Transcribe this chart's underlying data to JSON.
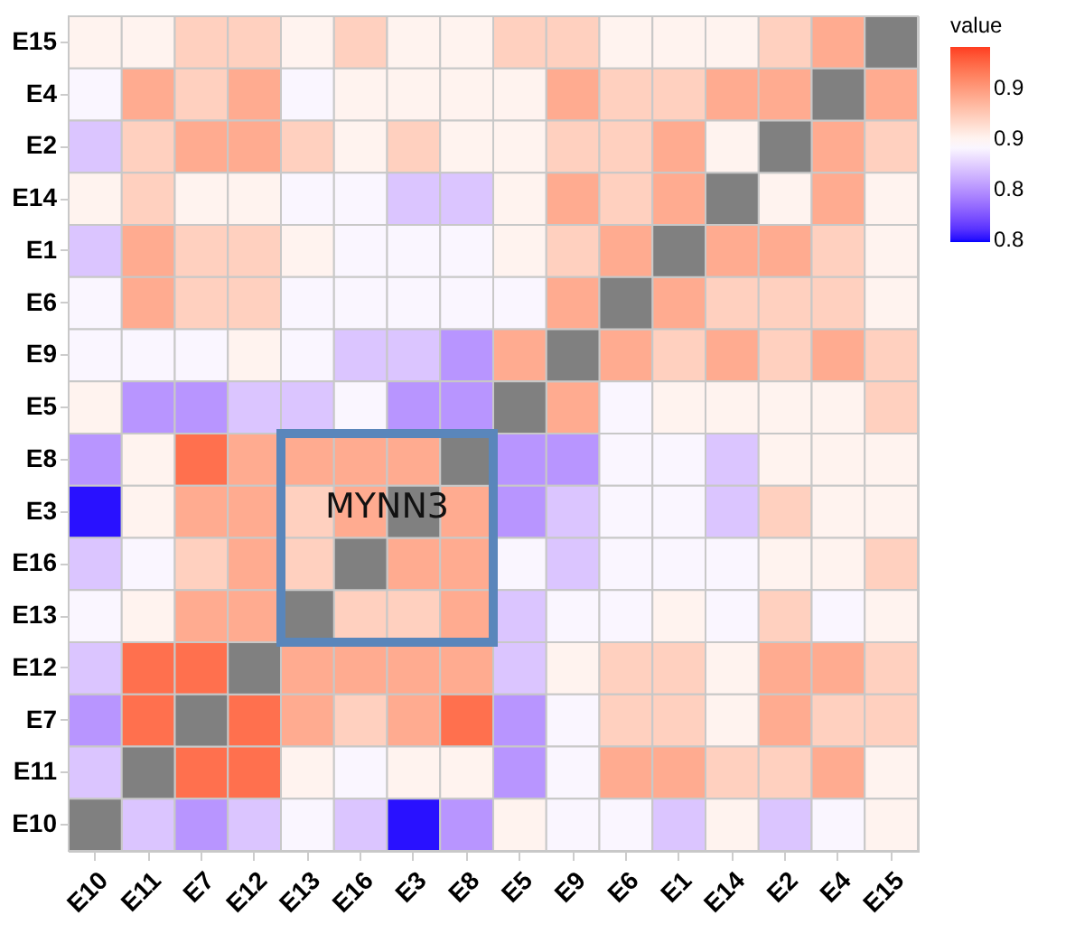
{
  "chart_data": {
    "type": "heatmap",
    "legend_title": "value",
    "annotations": [
      "MYNN3"
    ],
    "categories": [
      "E10",
      "E11",
      "E7",
      "E12",
      "E13",
      "E16",
      "E3",
      "E8",
      "E5",
      "E9",
      "E6",
      "E1",
      "E14",
      "E2",
      "E4",
      "E15"
    ],
    "y_categories": [
      "E15",
      "E4",
      "E2",
      "E14",
      "E1",
      "E6",
      "E9",
      "E5",
      "E8",
      "E3",
      "E16",
      "E13",
      "E12",
      "E7",
      "E11",
      "E10"
    ],
    "clim": [
      0.797,
      0.99
    ],
    "cticks": [
      {
        "value": 0.8,
        "label": "0.8"
      },
      {
        "value": 0.85,
        "label": "0.8"
      },
      {
        "value": 0.9,
        "label": "0.9"
      },
      {
        "value": 0.95,
        "label": "0.9"
      }
    ],
    "cells": [
      [
        0.9,
        0.9,
        0.92,
        0.92,
        0.9,
        0.92,
        0.9,
        0.9,
        0.92,
        0.92,
        0.9,
        0.9,
        0.9,
        0.92,
        0.94,
        null
      ],
      [
        0.89,
        0.94,
        0.92,
        0.94,
        0.89,
        0.9,
        0.9,
        0.9,
        0.9,
        0.94,
        0.92,
        0.92,
        0.94,
        0.94,
        null,
        0.94
      ],
      [
        0.87,
        0.92,
        0.94,
        0.94,
        0.92,
        0.9,
        0.92,
        0.9,
        0.9,
        0.92,
        0.92,
        0.94,
        0.9,
        null,
        0.94,
        0.92
      ],
      [
        0.9,
        0.92,
        0.9,
        0.9,
        0.89,
        0.89,
        0.87,
        0.87,
        0.9,
        0.94,
        0.92,
        0.94,
        null,
        0.9,
        0.94,
        0.9
      ],
      [
        0.87,
        0.94,
        0.92,
        0.92,
        0.9,
        0.89,
        0.89,
        0.89,
        0.9,
        0.92,
        0.94,
        null,
        0.94,
        0.94,
        0.92,
        0.9
      ],
      [
        0.89,
        0.94,
        0.92,
        0.92,
        0.89,
        0.89,
        0.89,
        0.89,
        0.89,
        0.94,
        null,
        0.94,
        0.92,
        0.92,
        0.92,
        0.9
      ],
      [
        0.89,
        0.89,
        0.89,
        0.9,
        0.89,
        0.87,
        0.87,
        0.85,
        0.94,
        null,
        0.94,
        0.92,
        0.94,
        0.92,
        0.94,
        0.92
      ],
      [
        0.9,
        0.85,
        0.85,
        0.87,
        0.87,
        0.89,
        0.85,
        0.85,
        null,
        0.94,
        0.89,
        0.9,
        0.9,
        0.9,
        0.9,
        0.92
      ],
      [
        0.85,
        0.9,
        0.97,
        0.94,
        0.94,
        0.94,
        0.94,
        null,
        0.85,
        0.85,
        0.89,
        0.89,
        0.87,
        0.9,
        0.9,
        0.9
      ],
      [
        0.8,
        0.9,
        0.94,
        0.94,
        0.92,
        0.94,
        null,
        0.94,
        0.85,
        0.87,
        0.89,
        0.89,
        0.87,
        0.92,
        0.9,
        0.9
      ],
      [
        0.87,
        0.89,
        0.92,
        0.94,
        0.92,
        null,
        0.94,
        0.94,
        0.89,
        0.87,
        0.89,
        0.89,
        0.89,
        0.9,
        0.9,
        0.92
      ],
      [
        0.89,
        0.9,
        0.94,
        0.94,
        null,
        0.92,
        0.92,
        0.94,
        0.87,
        0.89,
        0.89,
        0.9,
        0.89,
        0.92,
        0.89,
        0.9
      ],
      [
        0.87,
        0.97,
        0.97,
        null,
        0.94,
        0.94,
        0.94,
        0.94,
        0.87,
        0.9,
        0.92,
        0.92,
        0.9,
        0.94,
        0.94,
        0.92
      ],
      [
        0.85,
        0.97,
        null,
        0.97,
        0.94,
        0.92,
        0.94,
        0.97,
        0.85,
        0.89,
        0.92,
        0.92,
        0.9,
        0.94,
        0.92,
        0.92
      ],
      [
        0.87,
        null,
        0.97,
        0.97,
        0.9,
        0.89,
        0.9,
        0.9,
        0.85,
        0.89,
        0.94,
        0.94,
        0.92,
        0.92,
        0.94,
        0.9
      ],
      [
        null,
        0.87,
        0.85,
        0.87,
        0.89,
        0.87,
        0.8,
        0.85,
        0.9,
        0.89,
        0.89,
        0.87,
        0.9,
        0.87,
        0.89,
        0.9
      ]
    ]
  }
}
